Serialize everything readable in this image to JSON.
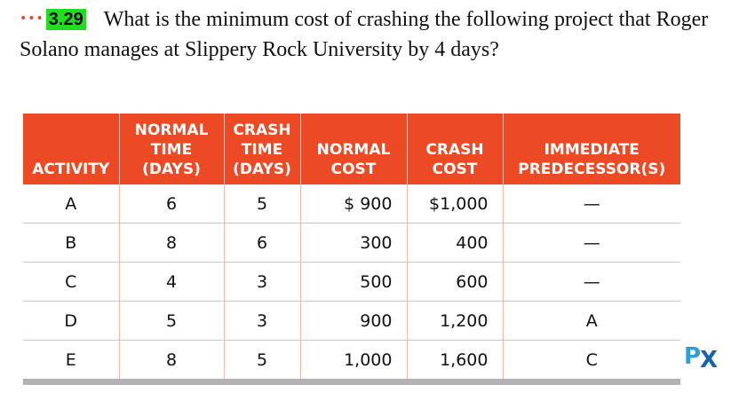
{
  "problem": {
    "dots": "•••",
    "number": "3.29",
    "text": "What is the minimum cost of crashing the following project that Roger Solano manages at Slippery Rock University by 4 days?"
  },
  "table": {
    "headers": [
      [
        "ACTIVITY"
      ],
      [
        "NORMAL",
        "TIME",
        "(DAYS)"
      ],
      [
        "CRASH",
        "TIME",
        "(DAYS)"
      ],
      [
        "NORMAL",
        "COST"
      ],
      [
        "CRASH",
        "COST"
      ],
      [
        "IMMEDIATE",
        "PREDECESSOR(S)"
      ]
    ],
    "rows": [
      [
        "A",
        "6",
        "5",
        "$ 900",
        "$1,000",
        "—"
      ],
      [
        "B",
        "8",
        "6",
        "300",
        "400",
        "—"
      ],
      [
        "C",
        "4",
        "3",
        "500",
        "600",
        "—"
      ],
      [
        "D",
        "5",
        "3",
        "900",
        "1,200",
        "A"
      ],
      [
        "E",
        "8",
        "5",
        "1,000",
        "1,600",
        "C"
      ]
    ]
  },
  "logo": {
    "p": "P",
    "x": "X"
  }
}
